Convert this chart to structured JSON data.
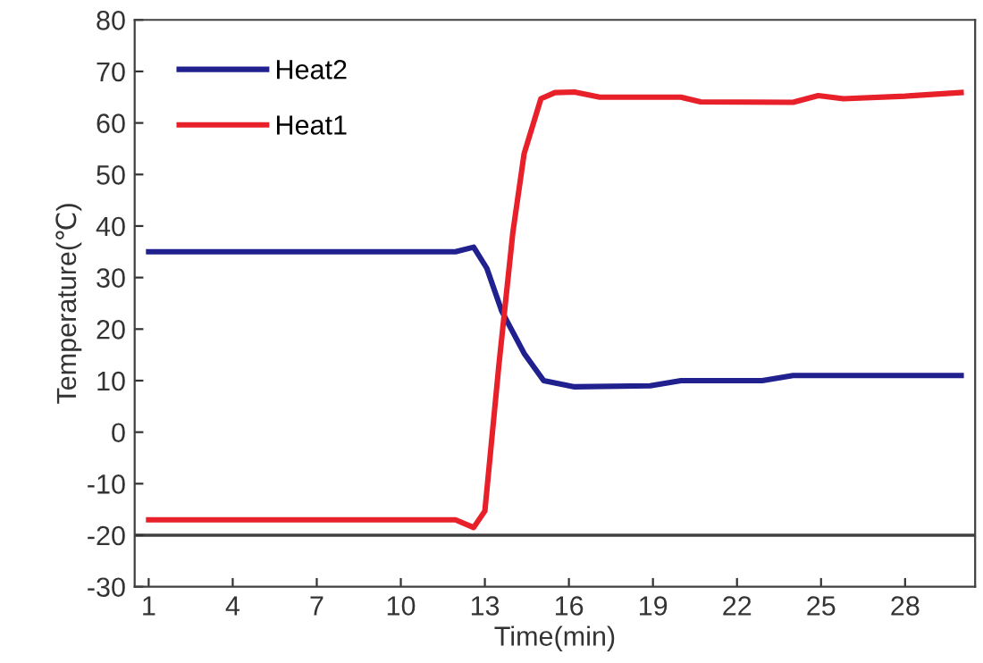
{
  "chart_data": {
    "type": "line",
    "xlabel": "Time(min)",
    "ylabel": "Temperature(℃)",
    "xlim": [
      0.5,
      30.5
    ],
    "xticks": [
      1,
      4,
      7,
      10,
      13,
      16,
      19,
      22,
      25,
      28
    ],
    "ylim": [
      -30,
      80
    ],
    "yticks": [
      -30,
      -20,
      -10,
      0,
      10,
      20,
      30,
      40,
      50,
      60,
      70,
      80
    ],
    "ref_lines": [
      {
        "axis": "y",
        "value": -20,
        "color": "#404040"
      }
    ],
    "grid": false,
    "legend": "top left",
    "marker": "none",
    "line_style": "solid",
    "series": [
      {
        "name": "Heat2",
        "color": "#20208f",
        "x": [
          1,
          11.95,
          12.6,
          13.07,
          13.6,
          14.4,
          15.1,
          16.2,
          18.9,
          20,
          22.9,
          24,
          30
        ],
        "values": [
          35,
          35,
          35.9,
          31.8,
          23.5,
          15.3,
          10,
          8.8,
          9,
          10,
          10,
          11,
          11
        ]
      },
      {
        "name": "Heat1",
        "color": "#e8202a",
        "x": [
          1,
          11.95,
          12.6,
          13.0,
          13.5,
          14,
          14.4,
          15,
          15.5,
          16.2,
          17.1,
          20,
          20.7,
          24,
          24.9,
          25.8,
          28,
          30
        ],
        "values": [
          -17,
          -17,
          -18.5,
          -15.3,
          13,
          38.8,
          54,
          64.7,
          65.9,
          66,
          65,
          65,
          64.1,
          64,
          65.3,
          64.7,
          65.2,
          65.9
        ]
      }
    ]
  }
}
